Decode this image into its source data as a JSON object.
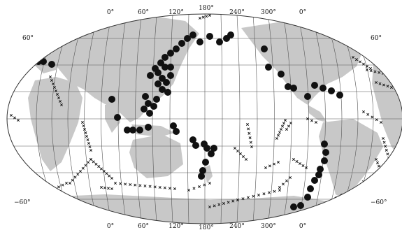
{
  "map": {
    "projection": "pseudocylindrical world map (Robinson-like), Pacific-centered",
    "top_longitude_labels": [
      "0°",
      "60°",
      "120°",
      "180°",
      "240°",
      "300°",
      "0°"
    ],
    "bottom_longitude_labels": [
      "0°",
      "60°",
      "120°",
      "180°",
      "240°",
      "300°",
      "0°"
    ],
    "left_latitude_labels": [
      "60°",
      "−60°"
    ],
    "right_latitude_labels": [
      "60°",
      "−60°"
    ],
    "colors": {
      "ocean": "#ffffff",
      "land": "#c8c8c8",
      "grid": "#555555",
      "marker": "#111111"
    },
    "symbols": {
      "large_event": "filled-circle",
      "small_event": "x-cross"
    }
  }
}
